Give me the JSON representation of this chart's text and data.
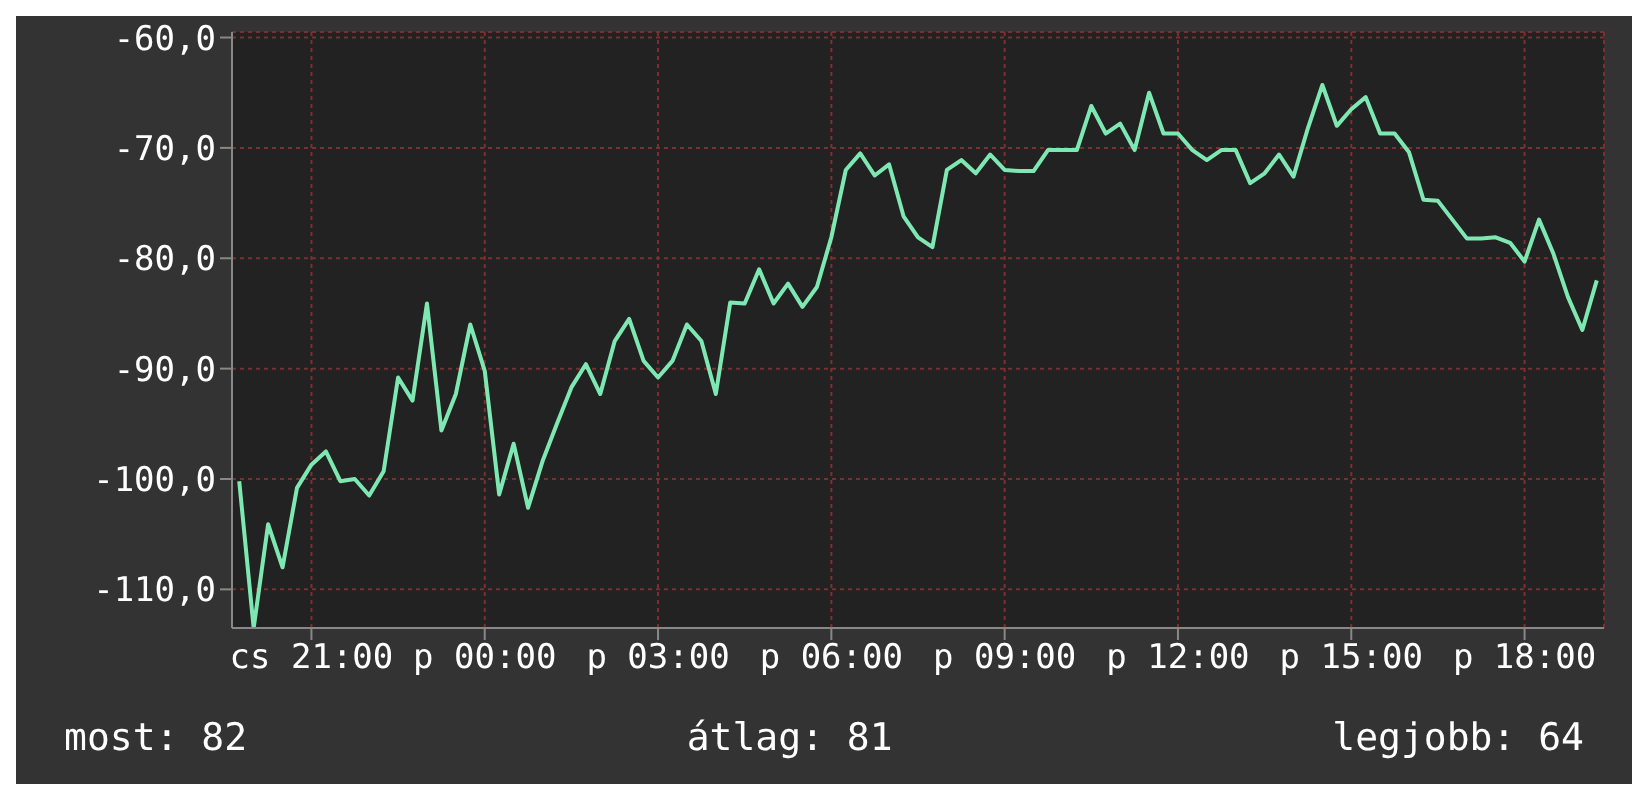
{
  "chart_data": {
    "type": "line",
    "categories": [
      null,
      null,
      null,
      null,
      null,
      "cs 21:00",
      null,
      null,
      null,
      null,
      null,
      null,
      null,
      null,
      null,
      null,
      null,
      "p 00:00",
      null,
      null,
      null,
      null,
      null,
      null,
      null,
      null,
      null,
      null,
      null,
      "p 03:00",
      null,
      null,
      null,
      null,
      null,
      null,
      null,
      null,
      null,
      null,
      null,
      "p 06:00",
      null,
      null,
      null,
      null,
      null,
      null,
      null,
      null,
      null,
      null,
      null,
      "p 09:00",
      null,
      null,
      null,
      null,
      null,
      null,
      null,
      null,
      null,
      null,
      null,
      "p 12:00",
      null,
      null,
      null,
      null,
      null,
      null,
      null,
      null,
      null,
      null,
      null,
      "p 15:00",
      null,
      null,
      null,
      null,
      null,
      null,
      null,
      null,
      null,
      null,
      null,
      "p 18:00",
      null,
      null,
      null,
      null,
      null
    ],
    "series": [
      {
        "color": "#7ee8b2",
        "values": [
          -100.2,
          -113.5,
          -104.1,
          -108,
          -100.8,
          -98.7,
          -97.5,
          -100.2,
          -100,
          -101.5,
          -99.3,
          -90.8,
          -92.9,
          -84.1,
          -95.6,
          -92.3,
          -86,
          -90.2,
          -101.4,
          -96.8,
          -102.6,
          -98.4,
          -95,
          -91.7,
          -89.6,
          -92.3,
          -87.5,
          -85.5,
          -89.3,
          -90.8,
          -89.3,
          -86,
          -87.5,
          -92.3,
          -84,
          -84.1,
          -81,
          -84.1,
          -82.3,
          -84.4,
          -82.6,
          -78.1,
          -72,
          -70.5,
          -72.5,
          -71.5,
          -76.2,
          -78.1,
          -79,
          -72,
          -71.1,
          -72.3,
          -70.6,
          -72,
          -72.1,
          -72.1,
          -70.2,
          -70.2,
          -70.2,
          -66.2,
          -68.7,
          -67.8,
          -70.2,
          -65,
          -68.7,
          -68.7,
          -70.2,
          -71.1,
          -70.2,
          -70.2,
          -73.2,
          -72.3,
          -70.6,
          -72.6,
          -68.2,
          -64.3,
          -68,
          -66.5,
          -65.4,
          -68.7,
          -68.7,
          -70.4,
          -74.7,
          -74.8,
          -76.5,
          -78.2,
          -78.2,
          -78.1,
          -78.6,
          -80.3,
          -76.5,
          -79.6,
          -83.5,
          -86.5,
          -82
        ]
      }
    ],
    "ylim": [
      -113.5,
      -59.5
    ],
    "yticks": [
      {
        "value": -110,
        "label": "-110,0"
      },
      {
        "value": -100,
        "label": "-100,0"
      },
      {
        "value": -90,
        "label": "-90,0"
      },
      {
        "value": -80,
        "label": "-80,0"
      },
      {
        "value": -70,
        "label": "-70,0"
      },
      {
        "value": -60,
        "label": "-60,0"
      }
    ],
    "grid": true,
    "marker": "none",
    "legend": false,
    "annotations": [
      "most: 82",
      "átlag: 81",
      "legjobb: 64"
    ]
  }
}
